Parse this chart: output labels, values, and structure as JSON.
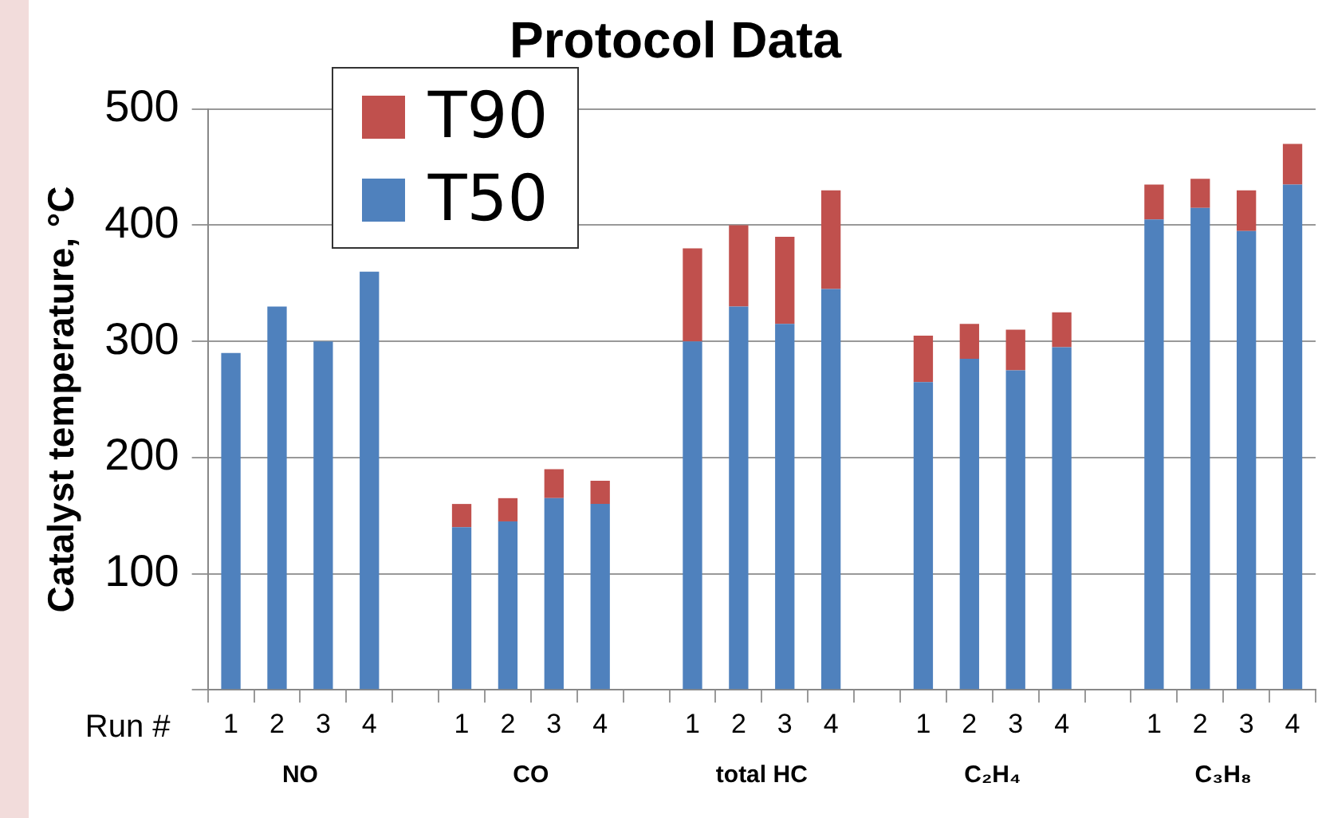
{
  "chart_data": {
    "type": "bar",
    "title": "Protocol Data",
    "ylabel": "Catalyst temperature, °C",
    "xlabel": "Run #",
    "categories": [
      "1",
      "2",
      "3",
      "4",
      null,
      "1",
      "2",
      "3",
      "4",
      null,
      "1",
      "2",
      "3",
      "4",
      null,
      "1",
      "2",
      "3",
      "4",
      null,
      "1",
      "2",
      "3",
      "4"
    ],
    "annotations": [
      "NO",
      "CO",
      "total HC",
      "C₂H₄",
      "C₃H₈"
    ],
    "stacked": true,
    "series": [
      {
        "name": "T50",
        "color": "#4f81bd",
        "values": [
          290,
          330,
          300,
          360,
          null,
          140,
          145,
          165,
          160,
          null,
          300,
          330,
          315,
          345,
          null,
          265,
          285,
          275,
          295,
          null,
          405,
          415,
          395,
          435
        ]
      },
      {
        "name": "T90",
        "color": "#c0504d",
        "values": [
          null,
          null,
          null,
          null,
          null,
          20,
          20,
          25,
          20,
          null,
          80,
          70,
          75,
          85,
          null,
          40,
          30,
          35,
          30,
          null,
          30,
          25,
          35,
          35
        ]
      }
    ],
    "ylim": [
      0,
      500
    ],
    "yticks": [
      {
        "value": 0,
        "label": null
      },
      100,
      200,
      300,
      400,
      500
    ],
    "grid": "y",
    "legend": "top left"
  }
}
